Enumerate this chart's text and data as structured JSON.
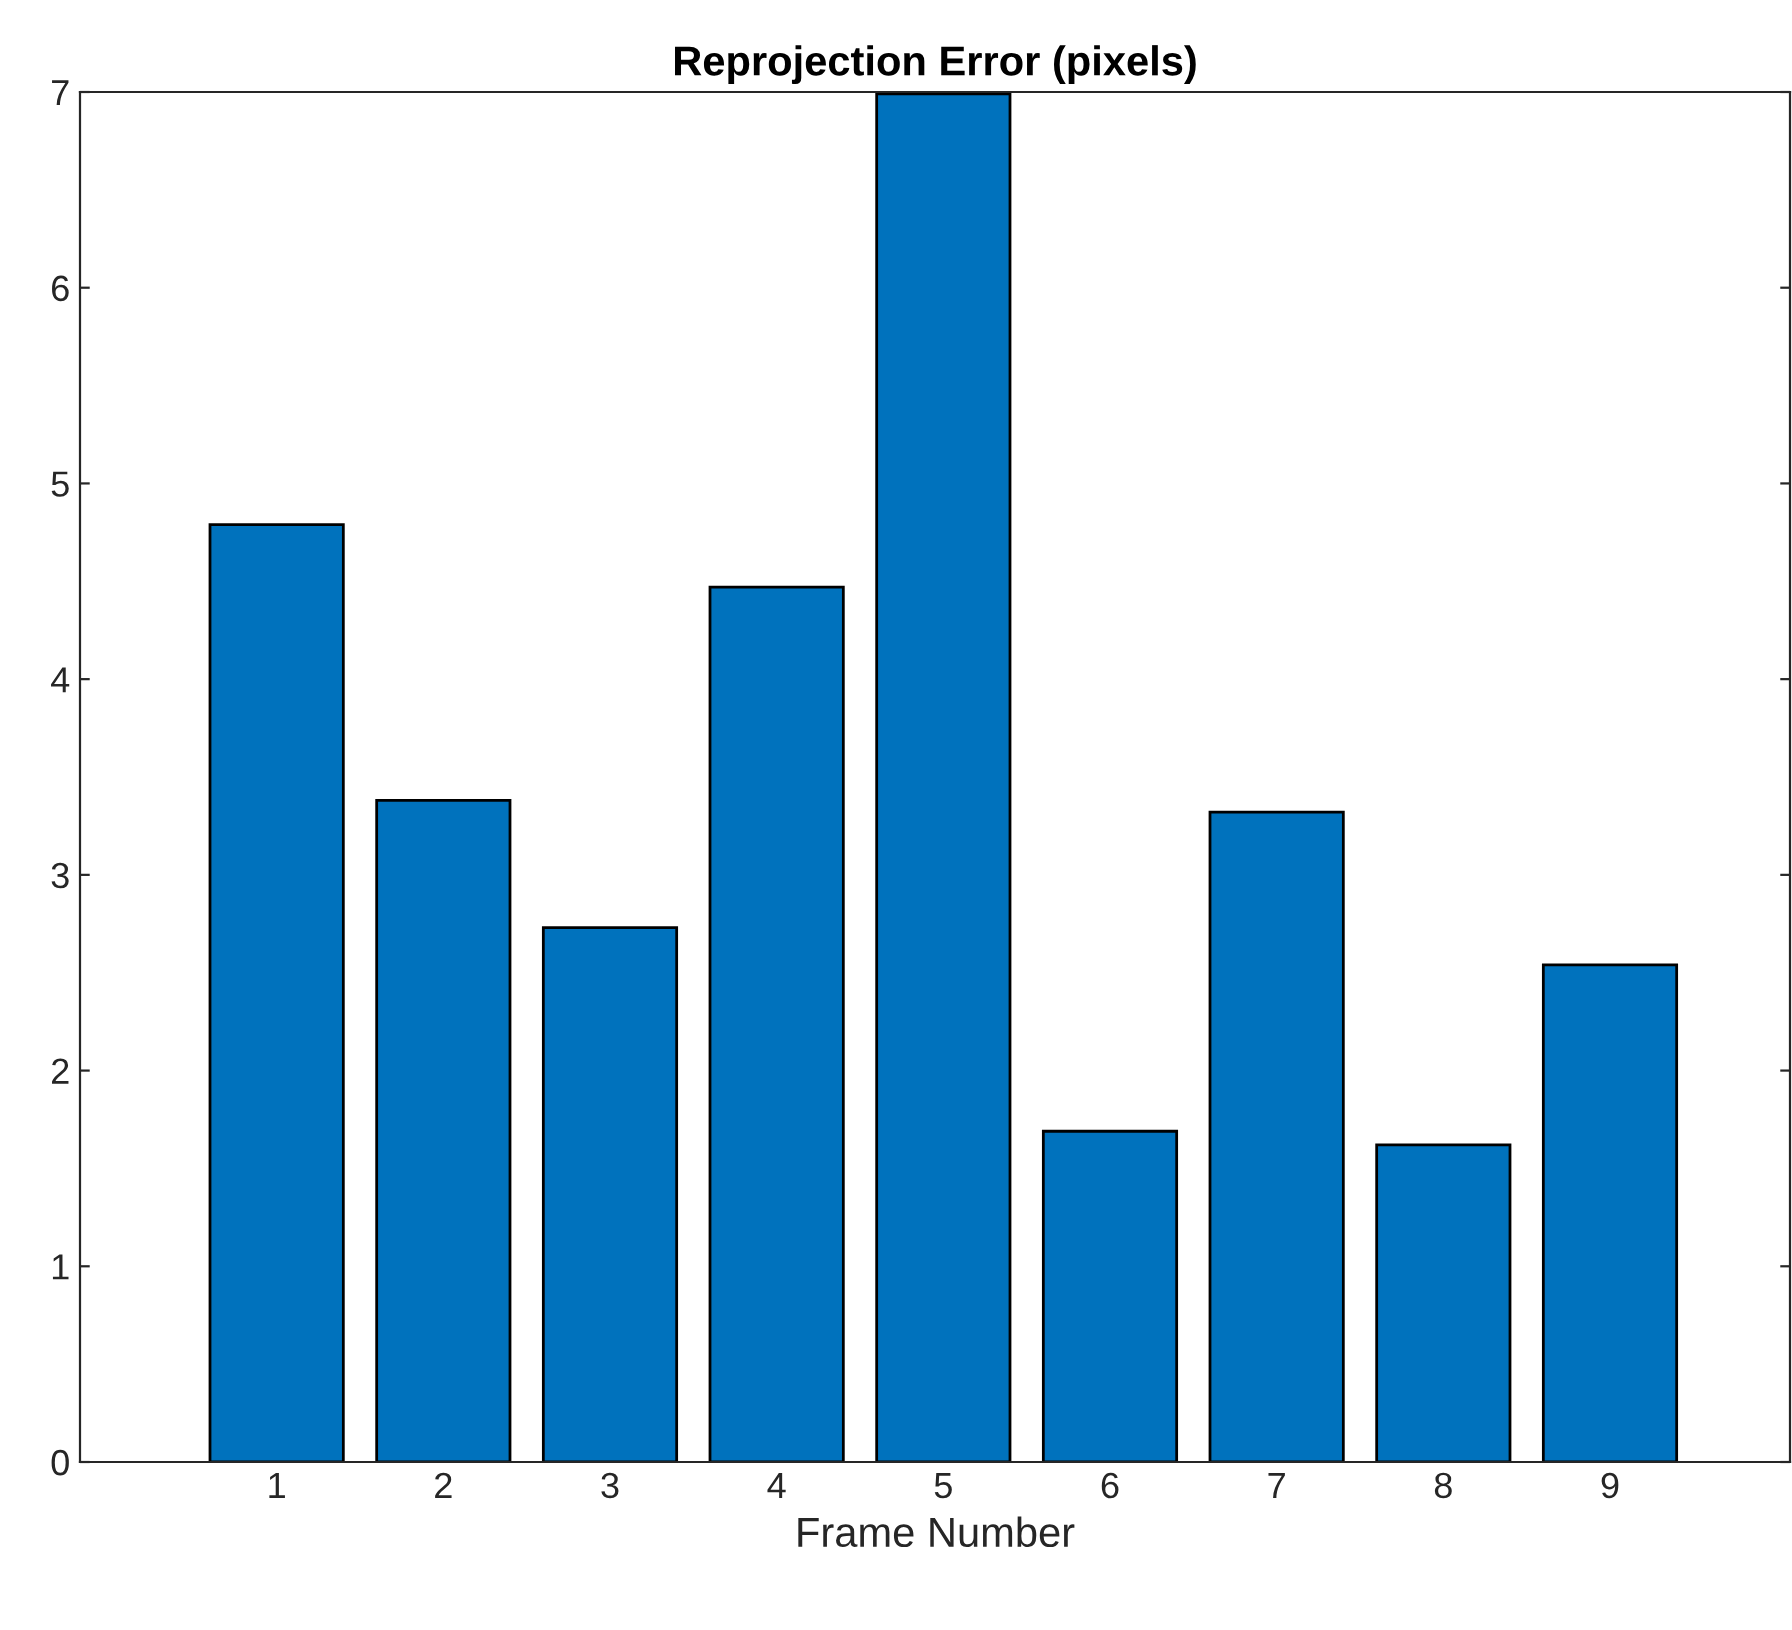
{
  "chart_data": {
    "type": "bar",
    "title": "Reprojection Error (pixels)",
    "xlabel": "Frame Number",
    "categories": [
      "1",
      "2",
      "3",
      "4",
      "5",
      "6",
      "7",
      "8",
      "9"
    ],
    "values": [
      4.79,
      3.38,
      2.73,
      4.47,
      6.99,
      1.69,
      3.32,
      1.62,
      2.54
    ],
    "color": "#0072bd",
    "ylim": [
      0,
      7
    ],
    "yticks": [
      0,
      1,
      2,
      3,
      4,
      5,
      6,
      7
    ],
    "grid": false
  }
}
